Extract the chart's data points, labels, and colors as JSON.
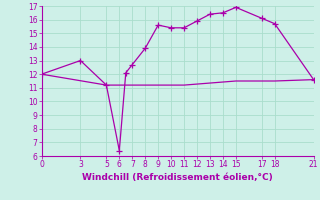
{
  "xlabel": "Windchill (Refroidissement éolien,°C)",
  "bg_color": "#cef0e8",
  "grid_color": "#aaddcc",
  "line_color": "#aa00aa",
  "curve1_x": [
    0,
    3,
    5,
    6,
    6.5,
    7,
    8,
    9,
    10,
    11,
    12,
    13,
    14,
    15,
    17,
    18,
    21
  ],
  "curve1_y": [
    12,
    13,
    11.2,
    6.4,
    12.1,
    12.7,
    13.9,
    15.6,
    15.4,
    15.4,
    15.9,
    16.4,
    16.5,
    16.9,
    16.1,
    15.7,
    11.6
  ],
  "curve2_x": [
    0,
    5,
    6,
    11,
    15,
    18,
    21
  ],
  "curve2_y": [
    12.0,
    11.2,
    11.2,
    11.2,
    11.5,
    11.5,
    11.6
  ],
  "xticks": [
    0,
    3,
    5,
    6,
    7,
    8,
    9,
    10,
    11,
    12,
    13,
    14,
    15,
    17,
    18,
    21
  ],
  "yticks": [
    6,
    7,
    8,
    9,
    10,
    11,
    12,
    13,
    14,
    15,
    16,
    17
  ],
  "xlim": [
    0,
    21
  ],
  "ylim": [
    6,
    17
  ],
  "marker": "+",
  "markersize": 4,
  "linewidth": 0.9
}
